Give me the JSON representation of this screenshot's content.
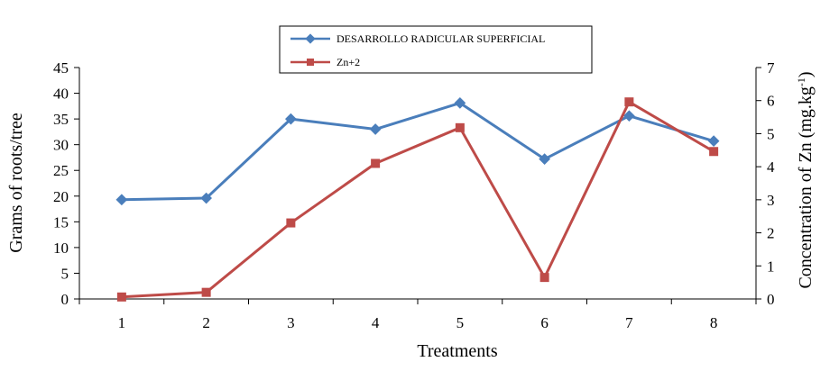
{
  "chart_data": {
    "type": "line",
    "x": [
      1,
      2,
      3,
      4,
      5,
      6,
      7,
      8
    ],
    "xlabel": "Treatments",
    "ylabel": "Grams of roots/tree",
    "y2label": "Concentration of Zn (mg.kg",
    "y2label_sup": "-1",
    "y2label_close": ")",
    "ylim": [
      0,
      45
    ],
    "y2lim": [
      0,
      7
    ],
    "yticks": [
      0,
      5,
      10,
      15,
      20,
      25,
      30,
      35,
      40,
      45
    ],
    "y2ticks": [
      0,
      1,
      2,
      3,
      4,
      5,
      6,
      7
    ],
    "grid": false,
    "legend_position": "top-center",
    "series": [
      {
        "name": "DESARROLLO RADICULAR SUPERFICIAL",
        "axis": "left",
        "marker": "diamond",
        "color": "#4a7ebb",
        "values": [
          19.3,
          19.6,
          35.0,
          33.0,
          38.1,
          27.2,
          35.6,
          30.7
        ]
      },
      {
        "name": "Zn+2",
        "axis": "right",
        "marker": "square",
        "color": "#be4b48",
        "values": [
          0.06,
          0.2,
          2.3,
          4.1,
          5.18,
          0.65,
          5.96,
          4.46
        ]
      }
    ]
  }
}
